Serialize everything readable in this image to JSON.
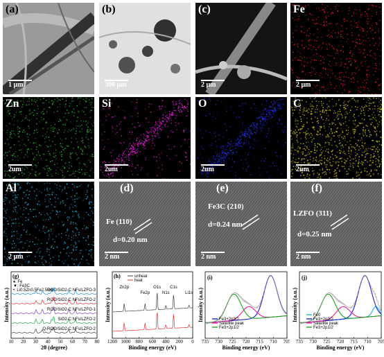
{
  "figure": {
    "row1": [
      {
        "label": "(a)",
        "scale": "1 μm"
      },
      {
        "label": "(b)",
        "scale": "300 μm"
      },
      {
        "label": "(c)",
        "scale": "2 μm"
      },
      {
        "label": "Fe",
        "scale": "2 μm"
      }
    ],
    "row2": [
      {
        "label": "Zn",
        "scale": "2um"
      },
      {
        "label": "Si",
        "scale": "2um"
      },
      {
        "label": "O",
        "scale": "2um"
      },
      {
        "label": "C",
        "scale": "2um"
      }
    ],
    "row3": [
      {
        "label": "Al",
        "scale": "2 μm"
      },
      {
        "label": "(d)",
        "scale": "2 nm",
        "anno": "Fe (110)",
        "d": "d=0.20 nm"
      },
      {
        "label": "(e)",
        "scale": "2 nm",
        "anno": "Fe3C (210)",
        "d": "d=0.24 nm"
      },
      {
        "label": "(f)",
        "scale": "2 nm",
        "anno": "LZFO (311)",
        "d": "d=0.25 nm"
      }
    ]
  },
  "colors": {
    "fe": "#e02020",
    "zn": "#30c030",
    "si": "#e020d0",
    "o": "#2030e0",
    "c": "#e0d020",
    "al": "#30b0e0"
  },
  "chart_data": [
    {
      "panel": "(g)",
      "type": "line",
      "xlabel": "2θ (degree)",
      "ylabel": "Intensity (a.u.)",
      "xlim": [
        10,
        80
      ],
      "x_ticks": [
        "10",
        "20",
        "30",
        "40",
        "50",
        "60",
        "70",
        "80"
      ],
      "legend_markers": [
        "♦: Fe",
        "▼: Fe3C",
        "•: Li0.5Zn0.5Fe2.5O4"
      ],
      "series": [
        {
          "name": "RGO/SiO2-C NFs/LZFO-3",
          "color": "#2090e0"
        },
        {
          "name": "RGO/SiO2-C NFs/LZFO-2",
          "color": "#e03030"
        },
        {
          "name": "RGO/SiO2-C NFs/LZFO-1",
          "color": "#8040c0"
        },
        {
          "name": "SiO2-C NFs/LZFO-2",
          "color": "#20a040"
        },
        {
          "name": "Q-RGO/SiO2-C NFs/LZFO-2",
          "color": "#404040"
        }
      ]
    },
    {
      "panel": "(h)",
      "type": "line",
      "xlabel": "Binding energy (eV)",
      "ylabel": "Intensity (a.u.)",
      "x_ticks": [
        "1200",
        "1000",
        "800",
        "600",
        "400",
        "200",
        "0"
      ],
      "peak_labels": [
        "Zn2p",
        "Fe2p",
        "O1s",
        "N1s",
        "C1s",
        "Li1s"
      ],
      "series": [
        {
          "name": "unheat",
          "color": "#404040"
        },
        {
          "name": "heat",
          "color": "#e03030"
        }
      ]
    },
    {
      "panel": "(i)",
      "type": "line",
      "xlabel": "Binding energy (eV)",
      "ylabel": "Intensity (a.u.)",
      "x_ticks": [
        "735",
        "730",
        "725",
        "720",
        "715",
        "710",
        "705"
      ],
      "series": [
        {
          "name": "Fe3+2p3/2",
          "color": "#2020c0"
        },
        {
          "name": "Satellite peak",
          "color": "#e020a0"
        },
        {
          "name": "Fe3+2p1/2",
          "color": "#20a020"
        }
      ]
    },
    {
      "panel": "(j)",
      "type": "line",
      "xlabel": "Binding energy (eV)",
      "ylabel": "Intensity (a.u.)",
      "x_ticks": [
        "735",
        "730",
        "725",
        "720",
        "715",
        "710",
        "705"
      ],
      "series": [
        {
          "name": "Fe0",
          "color": "#20b0e0"
        },
        {
          "name": "Fe3+2p3/2",
          "color": "#2020c0"
        },
        {
          "name": "Satellite peak",
          "color": "#e020a0"
        },
        {
          "name": "Fe3+2p1/2",
          "color": "#20a020"
        }
      ]
    }
  ]
}
